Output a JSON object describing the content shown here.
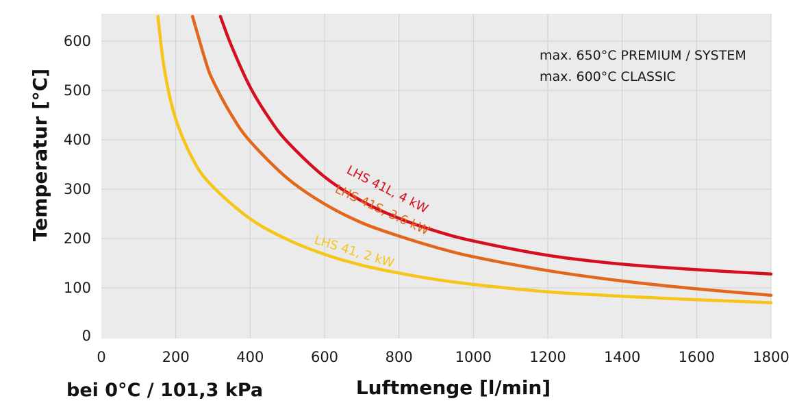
{
  "chart_data": {
    "type": "line",
    "xlabel": "Luftmenge [l/min]",
    "ylabel": "Temperatur [°C]",
    "xlim": [
      0,
      1800
    ],
    "ylim": [
      0,
      650
    ],
    "x_ticks": [
      0,
      200,
      400,
      600,
      800,
      1000,
      1200,
      1400,
      1600,
      1800
    ],
    "y_ticks": [
      0,
      100,
      200,
      300,
      400,
      500,
      600
    ],
    "grid": true,
    "conditions": "bei 0°C / 101,3 kPa",
    "notes": [
      "max. 650°C  PREMIUM / SYSTEM",
      "max. 600°C  CLASSIC"
    ],
    "series": [
      {
        "name": "LHS 41L, 4 kW",
        "color": "#d4101f",
        "x": [
          320,
          350,
          400,
          450,
          500,
          600,
          700,
          800,
          900,
          1000,
          1200,
          1400,
          1600,
          1800
        ],
        "y": [
          650,
          590,
          507,
          445,
          396,
          325,
          276,
          241,
          215,
          195,
          166,
          148,
          137,
          128
        ]
      },
      {
        "name": "LHS 41S, 3.6 kW",
        "color": "#e2661c",
        "x": [
          245,
          280,
          300,
          350,
          400,
          500,
          600,
          700,
          800,
          900,
          1000,
          1200,
          1400,
          1600,
          1800
        ],
        "y": [
          650,
          560,
          520,
          450,
          397,
          322,
          270,
          232,
          205,
          182,
          163,
          135,
          114,
          98,
          85
        ]
      },
      {
        "name": "LHS 41, 2 kW",
        "color": "#f5c518",
        "x": [
          152,
          170,
          200,
          250,
          300,
          400,
          500,
          600,
          700,
          800,
          900,
          1000,
          1200,
          1400,
          1600,
          1800
        ],
        "y": [
          650,
          540,
          442,
          355,
          305,
          240,
          198,
          168,
          146,
          130,
          117,
          107,
          92,
          83,
          76,
          70
        ]
      }
    ]
  }
}
